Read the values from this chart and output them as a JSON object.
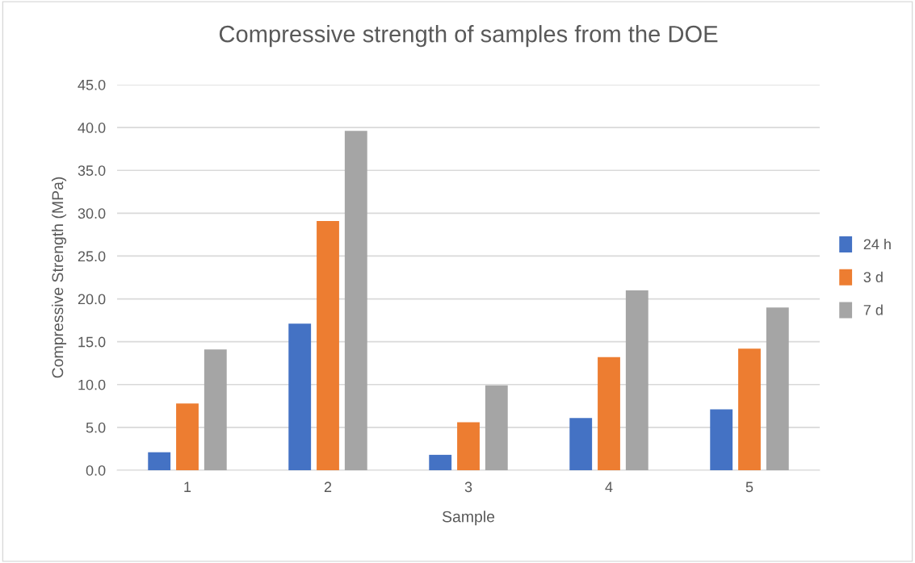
{
  "chart_data": {
    "type": "bar",
    "title": "Compressive strength of samples from the DOE",
    "xlabel": "Sample",
    "ylabel": "Compressive Strength (MPa)",
    "categories": [
      "1",
      "2",
      "3",
      "4",
      "5"
    ],
    "series": [
      {
        "name": "24 h",
        "color": "#4472c4",
        "values": [
          2.1,
          17.1,
          1.8,
          6.1,
          7.1
        ]
      },
      {
        "name": "3 d",
        "color": "#ed7d31",
        "values": [
          7.8,
          29.1,
          5.6,
          13.2,
          14.2
        ]
      },
      {
        "name": "7 d",
        "color": "#a5a5a5",
        "values": [
          14.1,
          39.6,
          9.9,
          21.0,
          19.0
        ]
      }
    ],
    "ylim": [
      0,
      45
    ],
    "yticks": [
      {
        "value": 0,
        "label": "0.0"
      },
      {
        "value": 5,
        "label": "5.0"
      },
      {
        "value": 10,
        "label": "10.0"
      },
      {
        "value": 15,
        "label": "15.0"
      },
      {
        "value": 20,
        "label": "20.0"
      },
      {
        "value": 25,
        "label": "25.0"
      },
      {
        "value": 30,
        "label": "30.0"
      },
      {
        "value": 35,
        "label": "35.0"
      },
      {
        "value": 40,
        "label": "40.0"
      },
      {
        "value": 45,
        "label": "45.0"
      }
    ],
    "grid": "y",
    "legend": "right"
  }
}
